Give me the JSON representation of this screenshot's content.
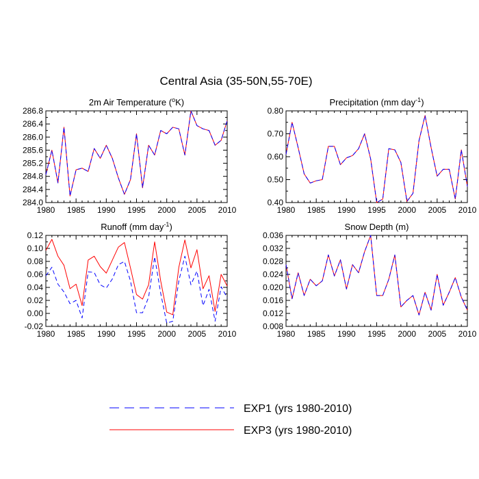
{
  "figure_title": "Central Asia (35-50N,55-70E)",
  "legend": [
    {
      "series": "EXP1",
      "label": "EXP1 (yrs 1980-2010)",
      "color": "#0000ff",
      "dash": "dashed"
    },
    {
      "series": "EXP3",
      "label": "EXP3 (yrs 1980-2010)",
      "color": "#ff0000",
      "dash": "solid"
    }
  ],
  "chart_data": [
    {
      "type": "line",
      "title": "2m Air Temperature (",
      "title_super": "o",
      "title_suffix": "K)",
      "xlim": [
        1980,
        2010
      ],
      "ylim": [
        284.0,
        286.8
      ],
      "xticks": [
        1980,
        1985,
        1990,
        1995,
        2000,
        2005,
        2010
      ],
      "yticks": [
        "284.0",
        "284.4",
        "284.8",
        "285.2",
        "285.6",
        "286.0",
        "286.4",
        "286.8"
      ],
      "x": [
        1980,
        1981,
        1982,
        1983,
        1984,
        1985,
        1986,
        1987,
        1988,
        1989,
        1990,
        1991,
        1992,
        1993,
        1994,
        1995,
        1996,
        1997,
        1998,
        1999,
        2000,
        2001,
        2002,
        2003,
        2004,
        2005,
        2006,
        2007,
        2008,
        2009,
        2010
      ],
      "series": [
        {
          "name": "EXP1",
          "values": [
            284.85,
            285.6,
            284.6,
            286.3,
            284.2,
            285.0,
            285.05,
            284.95,
            285.65,
            285.35,
            285.75,
            285.35,
            284.75,
            284.25,
            284.7,
            286.1,
            284.45,
            285.75,
            285.45,
            286.2,
            286.1,
            286.3,
            286.25,
            285.45,
            286.8,
            286.35,
            286.25,
            286.2,
            285.75,
            285.9,
            286.5
          ]
        },
        {
          "name": "EXP3",
          "values": [
            284.85,
            285.6,
            284.6,
            286.3,
            284.2,
            285.0,
            285.05,
            284.95,
            285.65,
            285.35,
            285.75,
            285.35,
            284.75,
            284.25,
            284.7,
            286.1,
            284.45,
            285.75,
            285.45,
            286.2,
            286.1,
            286.3,
            286.25,
            285.45,
            286.8,
            286.35,
            286.25,
            286.2,
            285.75,
            285.9,
            286.5
          ]
        }
      ]
    },
    {
      "type": "line",
      "title": "Precipitation (mm day",
      "title_super": "-1",
      "title_suffix": ")",
      "xlim": [
        1980,
        2010
      ],
      "ylim": [
        0.4,
        0.8
      ],
      "xticks": [
        1980,
        1985,
        1990,
        1995,
        2000,
        2005,
        2010
      ],
      "yticks": [
        "0.40",
        "0.50",
        "0.60",
        "0.70",
        "0.80"
      ],
      "x": [
        1980,
        1981,
        1982,
        1983,
        1984,
        1985,
        1986,
        1987,
        1988,
        1989,
        1990,
        1991,
        1992,
        1993,
        1994,
        1995,
        1996,
        1997,
        1998,
        1999,
        2000,
        2001,
        2002,
        2003,
        2004,
        2005,
        2006,
        2007,
        2008,
        2009,
        2010
      ],
      "series": [
        {
          "name": "EXP1",
          "values": [
            0.61,
            0.75,
            0.64,
            0.525,
            0.485,
            0.495,
            0.5,
            0.645,
            0.645,
            0.565,
            0.595,
            0.605,
            0.635,
            0.7,
            0.59,
            0.4,
            0.415,
            0.635,
            0.63,
            0.575,
            0.405,
            0.44,
            0.67,
            0.78,
            0.64,
            0.515,
            0.545,
            0.545,
            0.415,
            0.63,
            0.47
          ]
        },
        {
          "name": "EXP3",
          "values": [
            0.61,
            0.75,
            0.64,
            0.525,
            0.485,
            0.495,
            0.5,
            0.645,
            0.645,
            0.565,
            0.595,
            0.605,
            0.635,
            0.7,
            0.59,
            0.4,
            0.415,
            0.635,
            0.63,
            0.575,
            0.405,
            0.44,
            0.67,
            0.78,
            0.64,
            0.515,
            0.545,
            0.545,
            0.415,
            0.63,
            0.47
          ]
        }
      ]
    },
    {
      "type": "line",
      "title": "Runoff (mm day",
      "title_super": "-1",
      "title_suffix": ")",
      "xlim": [
        1980,
        2010
      ],
      "ylim": [
        -0.02,
        0.12
      ],
      "xticks": [
        1980,
        1985,
        1990,
        1995,
        2000,
        2005,
        2010
      ],
      "yticks": [
        "-0.02",
        "0.00",
        "0.02",
        "0.04",
        "0.06",
        "0.08",
        "0.10",
        "0.12"
      ],
      "x": [
        1980,
        1981,
        1982,
        1983,
        1984,
        1985,
        1986,
        1987,
        1988,
        1989,
        1990,
        1991,
        1992,
        1993,
        1994,
        1995,
        1996,
        1997,
        1998,
        1999,
        2000,
        2001,
        2002,
        2003,
        2004,
        2005,
        2006,
        2007,
        2008,
        2009,
        2010
      ],
      "series": [
        {
          "name": "EXP1",
          "values": [
            0.058,
            0.071,
            0.045,
            0.033,
            0.015,
            0.02,
            -0.007,
            0.064,
            0.063,
            0.044,
            0.039,
            0.053,
            0.075,
            0.08,
            0.05,
            0.001,
            0.001,
            0.025,
            0.087,
            0.031,
            -0.015,
            -0.012,
            0.05,
            0.088,
            0.044,
            0.065,
            0.012,
            0.037,
            -0.012,
            0.041,
            0.024
          ]
        },
        {
          "name": "EXP3",
          "values": [
            0.097,
            0.114,
            0.088,
            0.074,
            0.038,
            0.045,
            0.012,
            0.082,
            0.088,
            0.072,
            0.062,
            0.082,
            0.102,
            0.109,
            0.07,
            0.029,
            0.022,
            0.044,
            0.11,
            0.05,
            0.002,
            -0.002,
            0.071,
            0.113,
            0.07,
            0.098,
            0.038,
            0.058,
            0.003,
            0.06,
            0.042
          ]
        }
      ]
    },
    {
      "type": "line",
      "title": "Snow Depth (m)",
      "xlim": [
        1980,
        2010
      ],
      "ylim": [
        0.008,
        0.036
      ],
      "xticks": [
        1980,
        1985,
        1990,
        1995,
        2000,
        2005,
        2010
      ],
      "yticks": [
        "0.008",
        "0.012",
        "0.016",
        "0.020",
        "0.024",
        "0.028",
        "0.032",
        "0.036"
      ],
      "x": [
        1980,
        1981,
        1982,
        1983,
        1984,
        1985,
        1986,
        1987,
        1988,
        1989,
        1990,
        1991,
        1992,
        1993,
        1994,
        1995,
        1996,
        1997,
        1998,
        1999,
        2000,
        2001,
        2002,
        2003,
        2004,
        2005,
        2006,
        2007,
        2008,
        2009,
        2010
      ],
      "series": [
        {
          "name": "EXP1",
          "values": [
            0.027,
            0.0165,
            0.0245,
            0.0175,
            0.0225,
            0.0205,
            0.022,
            0.03,
            0.0235,
            0.0285,
            0.0195,
            0.027,
            0.0245,
            0.031,
            0.036,
            0.0175,
            0.0175,
            0.0225,
            0.03,
            0.014,
            0.016,
            0.0175,
            0.0115,
            0.0185,
            0.013,
            0.024,
            0.0145,
            0.0185,
            0.023,
            0.017,
            0.013
          ]
        },
        {
          "name": "EXP3",
          "values": [
            0.027,
            0.0165,
            0.0245,
            0.0175,
            0.0225,
            0.0205,
            0.022,
            0.03,
            0.0235,
            0.0285,
            0.0195,
            0.027,
            0.0245,
            0.031,
            0.036,
            0.0175,
            0.0175,
            0.0225,
            0.03,
            0.014,
            0.016,
            0.0175,
            0.0115,
            0.0185,
            0.013,
            0.024,
            0.0145,
            0.0185,
            0.023,
            0.017,
            0.013
          ]
        }
      ]
    }
  ]
}
